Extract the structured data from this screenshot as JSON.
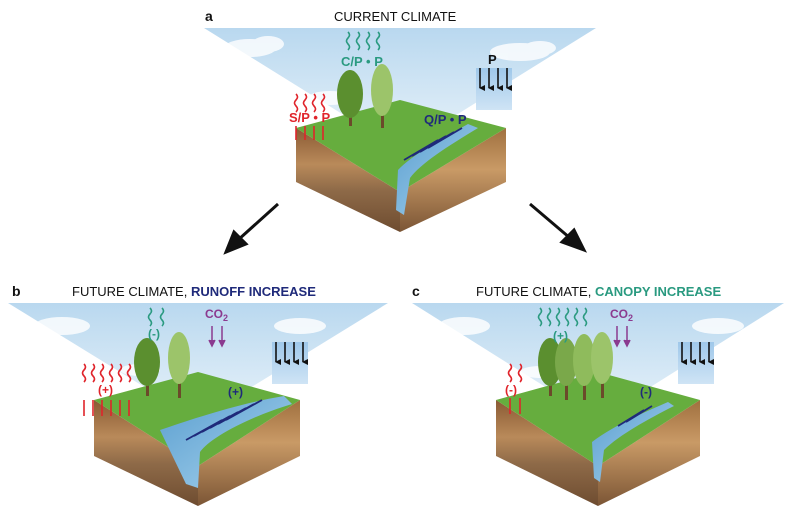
{
  "colors": {
    "sensible": "#e0242b",
    "canopy": "#2a9a80",
    "runoff": "#1f2a7a",
    "precip": "#111111",
    "co2": "#8b3a8f",
    "sky": "#cfe3f3",
    "grass": "#5aa63a",
    "soil": "#9a6a3f",
    "water": "#7fb8de"
  },
  "icons": [
    "wavy-arrow-icon",
    "straight-arrow-icon",
    "tree-icon",
    "cloud-icon",
    "rain-box-icon"
  ],
  "panels": {
    "a": {
      "letter": "a",
      "title": "CURRENT CLIMATE",
      "labels": {
        "canopy": "C/P • P",
        "precip": "P",
        "sensible": "S/P • P",
        "runoff": "Q/P • P"
      }
    },
    "b": {
      "letter": "b",
      "title_prefix": "FUTURE CLIMATE, ",
      "title_highlight": "RUNOFF INCREASE",
      "labels": {
        "canopy": "(-)",
        "co2": "CO",
        "co2_sub": "2",
        "sensible": "(+)",
        "runoff": "(+)"
      }
    },
    "c": {
      "letter": "c",
      "title_prefix": "FUTURE CLIMATE, ",
      "title_highlight": "CANOPY INCREASE",
      "labels": {
        "canopy": "(+)",
        "co2": "CO",
        "co2_sub": "2",
        "sensible": "(-)",
        "runoff": "(-)"
      }
    }
  }
}
